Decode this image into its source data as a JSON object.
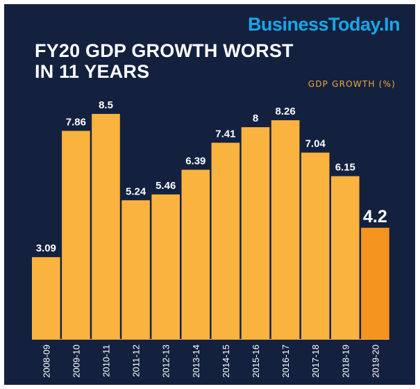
{
  "brand": "BusinessToday.In",
  "title_lines": [
    "FY20 GDP GROWTH WORST",
    "IN 11 YEARS"
  ],
  "legend_label": "GDP GROWTH (%)",
  "colors": {
    "background": "#13213f",
    "bar": "#fbb33f",
    "highlight_bar": "#f5951f",
    "label": "#ffffff",
    "brand": "#1aa6e6",
    "legend": "#f6a838"
  },
  "chart_data": {
    "type": "bar",
    "title": "FY20 GDP GROWTH WORST IN 11 YEARS",
    "xlabel": "",
    "ylabel": "GDP GROWTH (%)",
    "legend": "GDP GROWTH (%)",
    "categories": [
      "2008-09",
      "2009-10",
      "2010-11",
      "2011-12",
      "2012-13",
      "2013-14",
      "2014-15",
      "2015-16",
      "2016-17",
      "2017-18",
      "2018-19",
      "2019-20"
    ],
    "values": [
      3.09,
      7.86,
      8.5,
      5.24,
      5.46,
      6.39,
      7.41,
      8,
      8.26,
      7.04,
      6.15,
      4.2
    ],
    "value_labels": [
      "3.09",
      "7.86",
      "8.5",
      "5.24",
      "5.46",
      "6.39",
      "7.41",
      "8",
      "8.26",
      "7.04",
      "6.15",
      "4.2"
    ],
    "highlight_index": 11,
    "ylim": [
      0,
      8.5
    ],
    "grid": false
  }
}
